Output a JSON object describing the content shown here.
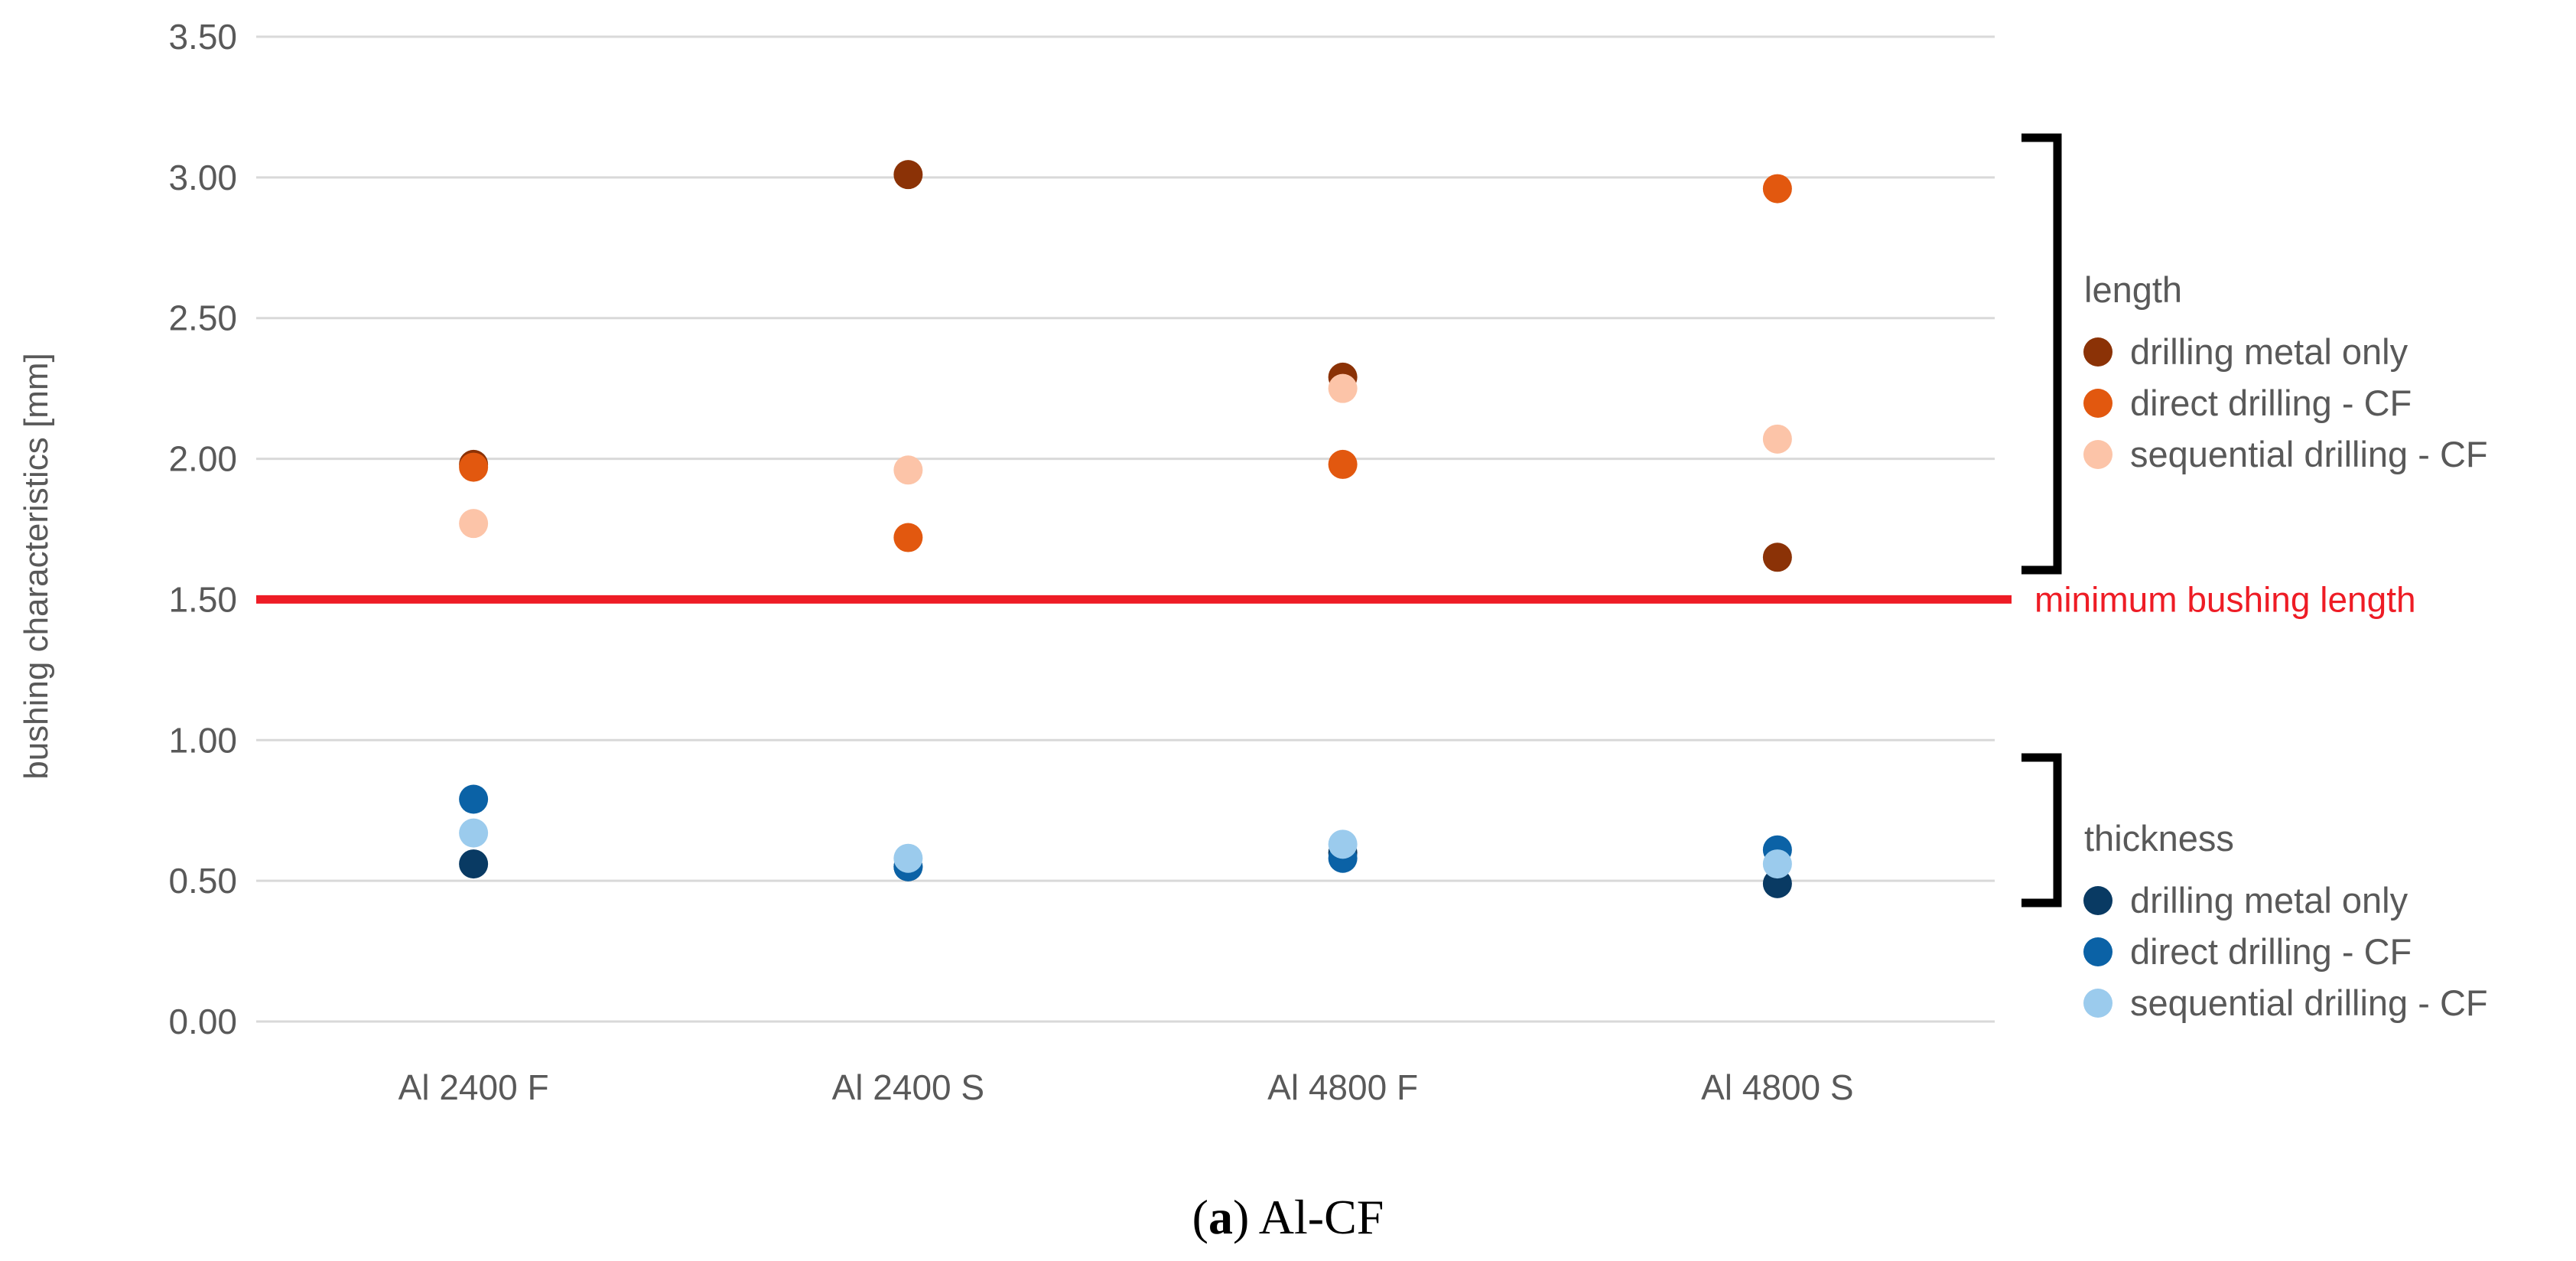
{
  "chart_data": {
    "type": "scatter",
    "categories": [
      "Al 2400 F",
      "Al 2400 S",
      "Al 4800 F",
      "Al 4800 S"
    ],
    "ylabel": "bushing characteristics [mm]",
    "xlabel": "",
    "ylim": [
      0,
      3.5
    ],
    "y_ticks": [
      "0.00",
      "0.50",
      "1.00",
      "1.50",
      "2.00",
      "2.50",
      "3.00",
      "3.50"
    ],
    "grid": true,
    "reference_line": {
      "value": 1.5,
      "label": "minimum bushing length",
      "color": "#ee1c25"
    },
    "groups": [
      {
        "name": "length",
        "series": [
          {
            "name": "drilling metal only",
            "color": "#8b3206",
            "values": [
              1.98,
              3.01,
              2.29,
              1.65
            ]
          },
          {
            "name": "direct drilling - CF",
            "color": "#e2580f",
            "values": [
              1.97,
              1.72,
              1.98,
              2.96
            ]
          },
          {
            "name": "sequential drilling - CF",
            "color": "#fcc4a8",
            "values": [
              1.77,
              1.96,
              2.25,
              2.07
            ]
          }
        ]
      },
      {
        "name": "thickness",
        "series": [
          {
            "name": "drilling metal only",
            "color": "#093a63",
            "values": [
              0.56,
              0.55,
              0.6,
              0.49
            ]
          },
          {
            "name": "direct drilling - CF",
            "color": "#0b62a6",
            "values": [
              0.79,
              0.55,
              0.58,
              0.61
            ]
          },
          {
            "name": "sequential drilling - CF",
            "color": "#9bcbed",
            "values": [
              0.67,
              0.58,
              0.63,
              0.56
            ]
          }
        ]
      }
    ]
  },
  "caption": {
    "label": "a",
    "text": " Al-CF"
  }
}
